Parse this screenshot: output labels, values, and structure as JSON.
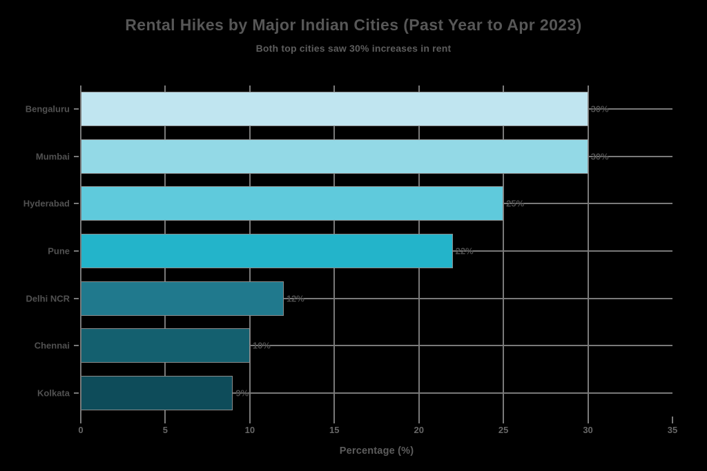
{
  "header": {
    "title": "Rental Hikes by Major Indian Cities (Past Year to Apr 2023)",
    "subtitle": "Both top cities saw 30% increases in rent"
  },
  "chart_data": {
    "type": "bar",
    "orientation": "horizontal",
    "title": "Rental Hikes by Major Indian Cities (Past Year to Apr 2023)",
    "subtitle": "Both top cities saw 30% increases in rent",
    "categories": [
      "Bengaluru",
      "Mumbai",
      "Hyderabad",
      "Pune",
      "Delhi NCR",
      "Chennai",
      "Kolkata"
    ],
    "values": [
      30,
      30,
      25,
      22,
      12,
      10,
      9
    ],
    "value_labels": [
      "30%",
      "30%",
      "25%",
      "22%",
      "12%",
      "10%",
      "9%"
    ],
    "xlabel": "Percentage (%)",
    "ylabel": "",
    "xlim": [
      0,
      35
    ],
    "xticks": [
      0,
      5,
      10,
      15,
      20,
      25,
      30,
      35
    ],
    "grid": true,
    "legend": false,
    "bar_colors": [
      "#c0e5f0",
      "#93d9e6",
      "#5fcadc",
      "#23b4ca",
      "#20798d",
      "#14606f",
      "#0e4c5a"
    ],
    "gridline_color": "#7a7a7a",
    "bar_outline_color": "#8d8d8d",
    "text_color": "#575757",
    "background_color": "#000000"
  }
}
